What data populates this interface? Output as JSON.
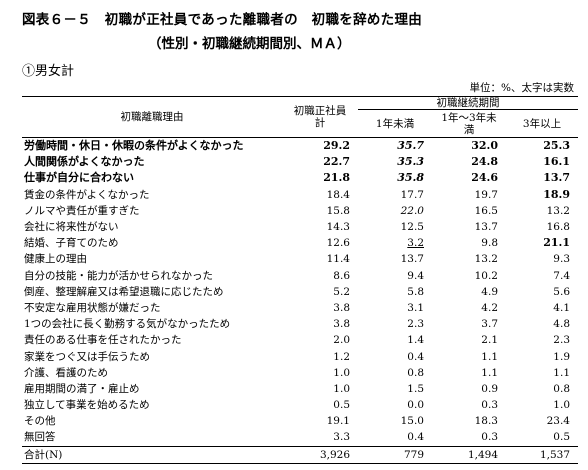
{
  "title": "図表６－５　初職が正社員であった離職者の　初職を辞めた理由",
  "subtitle": "（性別・初職継続期間別、ＭＡ）",
  "section": "①男女計",
  "unit_note": "単位：%、太字は実数",
  "headers": {
    "reason": "初職離職理由",
    "total_l1": "初職正社員",
    "total_l2": "計",
    "group": "初職継続期間",
    "c1": "1年未満",
    "c2_l1": "1年～3年未",
    "c2_l2": "満",
    "c3": "3年以上"
  },
  "rows": [
    {
      "label": "労働時間・休日・休暇の条件がよくなかった",
      "v": [
        "29.2",
        "35.7",
        "32.0",
        "25.3"
      ],
      "bold": true
    },
    {
      "label": "人間関係がよくなかった",
      "v": [
        "22.7",
        "35.3",
        "24.8",
        "16.1"
      ],
      "bold": true
    },
    {
      "label": "仕事が自分に合わない",
      "v": [
        "21.8",
        "35.8",
        "24.6",
        "13.7"
      ],
      "bold": true
    },
    {
      "label": "賃金の条件がよくなかった",
      "v": [
        "18.4",
        "17.7",
        "19.7",
        "18.9"
      ]
    },
    {
      "label": "ノルマや責任が重すぎた",
      "v": [
        "15.8",
        "22.0",
        "16.5",
        "13.2"
      ]
    },
    {
      "label": "会社に将来性がない",
      "v": [
        "14.3",
        "12.5",
        "13.7",
        "16.8"
      ]
    },
    {
      "label": "結婚、子育てのため",
      "v": [
        "12.6",
        "3.2",
        "9.8",
        "21.1"
      ]
    },
    {
      "label": "健康上の理由",
      "v": [
        "11.4",
        "13.7",
        "13.2",
        "9.3"
      ]
    },
    {
      "label": "自分の技能・能力が活かせられなかった",
      "v": [
        "8.6",
        "9.4",
        "10.2",
        "7.4"
      ]
    },
    {
      "label": "倒産、整理解雇又は希望退職に応じたため",
      "v": [
        "5.2",
        "5.8",
        "4.9",
        "5.6"
      ]
    },
    {
      "label": "不安定な雇用状態が嫌だった",
      "v": [
        "3.8",
        "3.1",
        "4.2",
        "4.1"
      ]
    },
    {
      "label": "1つの会社に長く勤務する気がなかったため",
      "v": [
        "3.8",
        "2.3",
        "3.7",
        "4.8"
      ]
    },
    {
      "label": "責任のある仕事を任されたかった",
      "v": [
        "2.0",
        "1.4",
        "2.1",
        "2.3"
      ]
    },
    {
      "label": "家業をつぐ又は手伝うため",
      "v": [
        "1.2",
        "0.4",
        "1.1",
        "1.9"
      ]
    },
    {
      "label": "介護、看護のため",
      "v": [
        "1.0",
        "0.8",
        "1.1",
        "1.1"
      ]
    },
    {
      "label": "雇用期間の満了・雇止め",
      "v": [
        "1.0",
        "1.5",
        "0.9",
        "0.8"
      ]
    },
    {
      "label": "独立して事業を始めるため",
      "v": [
        "0.5",
        "0.0",
        "0.3",
        "1.0"
      ]
    },
    {
      "label": "その他",
      "v": [
        "19.1",
        "15.0",
        "18.3",
        "23.4"
      ]
    },
    {
      "label": "無回答",
      "v": [
        "3.3",
        "0.4",
        "0.3",
        "0.5"
      ]
    }
  ],
  "total": {
    "label": "合計(N)",
    "v": [
      "3,926",
      "779",
      "1,494",
      "1,537"
    ]
  }
}
